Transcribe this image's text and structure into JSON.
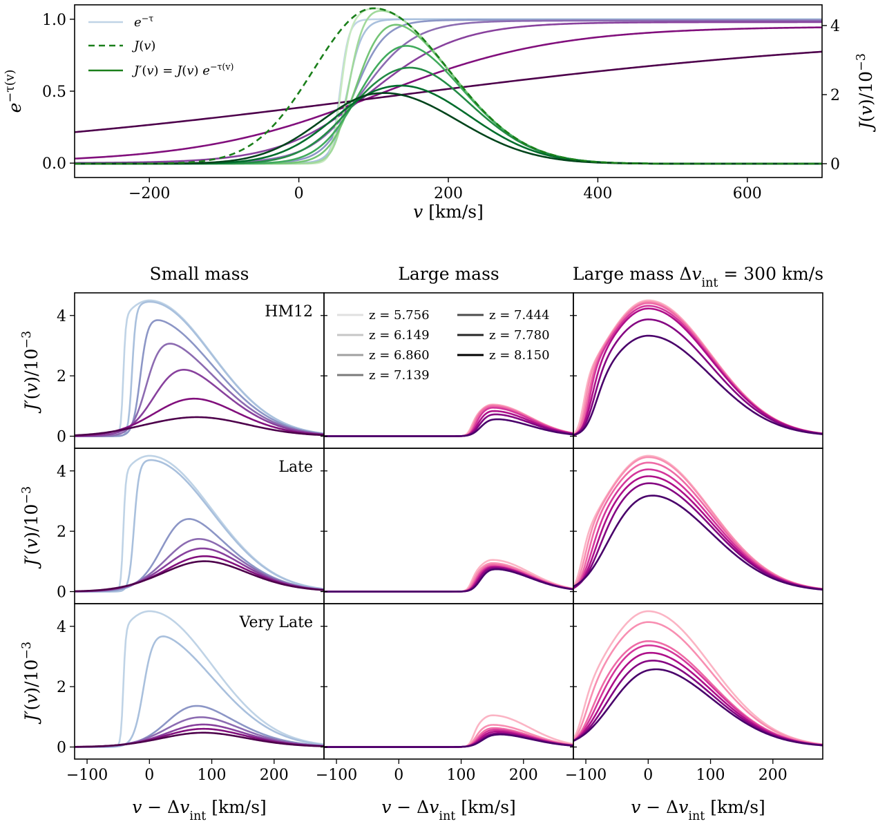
{
  "colors": {
    "blue_purple_map": [
      "#bfd3e6",
      "#a9c0dd",
      "#8c96c6",
      "#8c6bb1",
      "#88419d",
      "#810f7c",
      "#4d004b"
    ],
    "green_map": [
      "#c7e9c0",
      "#a1d99b",
      "#74c476",
      "#41ab5d",
      "#238b45",
      "#006d2c",
      "#00441b"
    ],
    "pink_purple_map": [
      "#fbb4c4",
      "#f88fb2",
      "#ee6aa6",
      "#d4369b",
      "#ae0f89",
      "#850582",
      "#49006a"
    ],
    "legend_grays": [
      "#e0e0e0",
      "#c6c6c6",
      "#a0a0a0",
      "#7a7a7a",
      "#4c4c4c",
      "#262626",
      "#000000"
    ],
    "j_dashed": "#1a7f1a",
    "j_prime_legend": "#1a7f1a",
    "etau_legend": "#bfd3e6"
  },
  "chart_data": [
    {
      "type": "line",
      "id": "top",
      "xlabel": "v [km/s]",
      "ylabel_left": "e^{-τ(v)}",
      "ylabel_right": "J(v)/10^{-3}",
      "xlim": [
        -300,
        700
      ],
      "ylim_left": [
        -0.1,
        1.1
      ],
      "ylim_right": [
        -0.4,
        4.6
      ],
      "x_ticks": [
        -200,
        0,
        200,
        400,
        600
      ],
      "x_tick_labels": [
        "−200",
        "0",
        "200",
        "400",
        "600"
      ],
      "y_ticks_left": [
        0,
        0.5,
        1
      ],
      "y_tick_labels_left": [
        "0.0",
        "0.5",
        "1.0"
      ],
      "y_ticks_right": [
        0,
        2,
        4
      ],
      "y_tick_labels_right": [
        "0",
        "2",
        "4"
      ],
      "legend": {
        "placement": "top-left",
        "entries": [
          "e^{−τ}",
          "J(v)",
          "J′(v) = J(v) e^{−τ(v)}"
        ]
      },
      "intrinsic_J": {
        "style": "dashed",
        "peak_v": 100,
        "peak_value": 4.5,
        "sigma_kms": 80,
        "skew": 1.25
      },
      "transmission_series": [
        {
          "v_edge": 55,
          "scale": 6,
          "plateau": 1.0
        },
        {
          "v_edge": 65,
          "scale": 10,
          "plateau": 1.0
        },
        {
          "v_edge": 75,
          "scale": 20,
          "plateau": 0.995
        },
        {
          "v_edge": 85,
          "scale": 35,
          "plateau": 0.99
        },
        {
          "v_edge": 95,
          "scale": 60,
          "plateau": 0.98
        },
        {
          "v_edge": 105,
          "scale": 120,
          "plateau": 0.95
        },
        {
          "v_edge": 115,
          "scale": 350,
          "plateau": 0.92
        }
      ]
    },
    {
      "type": "line",
      "id": "grid",
      "column_titles": [
        "Small mass",
        "Large mass",
        "Large mass Δv_int = 300 km/s"
      ],
      "row_labels": [
        "HM12",
        "Late",
        "Very Late"
      ],
      "xlabel": "v − Δv_int [km/s]",
      "ylabel": "J′(v)/10^{-3}",
      "xlim": [
        -120,
        280
      ],
      "ylim": [
        -0.4,
        4.75
      ],
      "x_ticks": [
        -100,
        0,
        100,
        200
      ],
      "x_tick_labels": [
        "−100",
        "0",
        "100",
        "200"
      ],
      "y_ticks": [
        0,
        2,
        4
      ],
      "y_tick_labels": [
        "0",
        "2",
        "4"
      ],
      "legend": {
        "placement": "top (Large mass, HM12 panel)",
        "entries": [
          "z = 5.756",
          "z = 6.149",
          "z = 6.860",
          "z = 7.139",
          "z = 7.444",
          "z = 7.780",
          "z = 8.150"
        ]
      },
      "profile_params": {
        "v_peak": 0,
        "sigma": 80,
        "skew": 1.25,
        "amplitude": 4.5
      },
      "panels": [
        {
          "row": 0,
          "col": 0,
          "v_edge": [
            -42,
            -28,
            -15,
            -5,
            12,
            35,
            85
          ],
          "scale": [
            2,
            3,
            6,
            12,
            22,
            40,
            70
          ],
          "plateau": [
            1.0,
            0.99,
            0.87,
            0.75,
            0.65,
            0.5,
            0.4
          ]
        },
        {
          "row": 0,
          "col": 1,
          "v_edge": [
            115,
            117,
            119,
            121,
            123,
            125,
            127
          ],
          "scale": [
            4,
            4,
            4,
            5,
            6,
            7,
            8
          ],
          "plateau": [
            1.0,
            0.98,
            0.95,
            0.9,
            0.8,
            0.7,
            0.55
          ]
        },
        {
          "row": 0,
          "col": 2,
          "v_edge": [
            -105,
            -102,
            -99,
            -96,
            -93,
            -90,
            -87
          ],
          "scale": [
            5,
            5,
            6,
            6,
            8,
            9,
            10
          ],
          "plateau": [
            1.0,
            0.99,
            0.98,
            0.96,
            0.94,
            0.86,
            0.74
          ]
        },
        {
          "row": 1,
          "col": 0,
          "v_edge": [
            -42,
            -25,
            25,
            45,
            55,
            65,
            70
          ],
          "scale": [
            2,
            4,
            20,
            30,
            35,
            40,
            45
          ],
          "plateau": [
            1.0,
            0.97,
            0.75,
            0.7,
            0.65,
            0.6,
            0.55
          ]
        },
        {
          "row": 1,
          "col": 1,
          "v_edge": [
            115,
            117,
            119,
            121,
            123,
            125,
            127
          ],
          "scale": [
            4,
            4,
            5,
            5,
            6,
            6,
            7
          ],
          "plateau": [
            1.0,
            0.9,
            0.85,
            0.8,
            0.78,
            0.75,
            0.72
          ]
        },
        {
          "row": 1,
          "col": 2,
          "v_edge": [
            -108,
            -104,
            -100,
            -96,
            -92,
            -88,
            -84
          ],
          "scale": [
            6,
            7,
            8,
            10,
            12,
            15,
            22
          ],
          "plateau": [
            1.0,
            0.99,
            0.95,
            0.9,
            0.85,
            0.8,
            0.72
          ]
        },
        {
          "row": 2,
          "col": 0,
          "v_edge": [
            -42,
            -10,
            40,
            50,
            58,
            62,
            66
          ],
          "scale": [
            2,
            8,
            25,
            32,
            36,
            40,
            45
          ],
          "plateau": [
            1.0,
            0.85,
            0.5,
            0.42,
            0.35,
            0.3,
            0.25
          ]
        },
        {
          "row": 2,
          "col": 1,
          "v_edge": [
            118,
            120,
            122,
            124,
            126,
            128,
            130
          ],
          "scale": [
            4,
            5,
            6,
            7,
            8,
            9,
            10
          ],
          "plateau": [
            1.0,
            0.7,
            0.6,
            0.55,
            0.5,
            0.45,
            0.42
          ]
        },
        {
          "row": 2,
          "col": 2,
          "v_edge": [
            -108,
            -104,
            -100,
            -96,
            -92,
            -88,
            -84
          ],
          "scale": [
            8,
            10,
            13,
            16,
            20,
            24,
            30
          ],
          "plateau": [
            1.0,
            0.92,
            0.78,
            0.75,
            0.7,
            0.65,
            0.6
          ]
        }
      ]
    }
  ]
}
